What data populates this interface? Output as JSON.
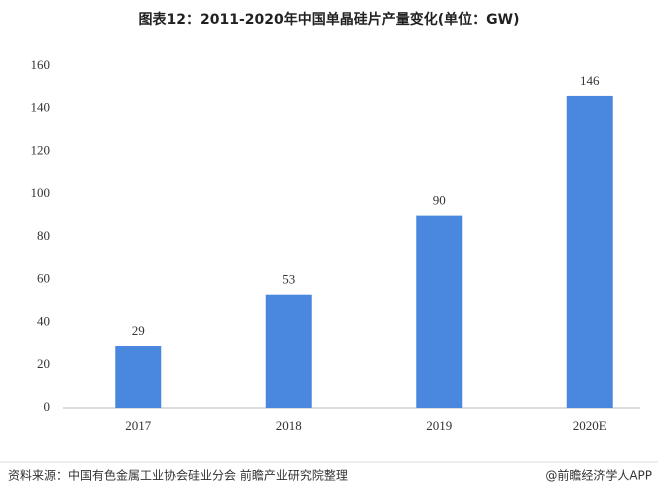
{
  "chart_data": {
    "type": "bar",
    "title": "图表12：2011-2020年中国单晶硅片产量变化(单位：GW)",
    "categories": [
      "2017",
      "2018",
      "2019",
      "2020E"
    ],
    "values": [
      29,
      53,
      90,
      146
    ],
    "color": "#4a88e0",
    "ylim": [
      0,
      160
    ],
    "yticks": [
      0,
      20,
      40,
      60,
      80,
      100,
      120,
      140,
      160
    ],
    "grid": false,
    "source": "资料来源：中国有色金属工业协会硅业分会 前瞻产业研究院整理",
    "credit": "@前瞻经济学人APP"
  }
}
